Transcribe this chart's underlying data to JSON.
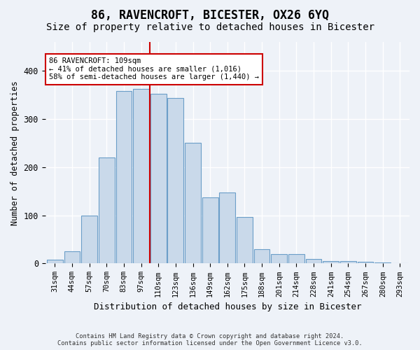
{
  "title": "86, RAVENCROFT, BICESTER, OX26 6YQ",
  "subtitle": "Size of property relative to detached houses in Bicester",
  "xlabel": "Distribution of detached houses by size in Bicester",
  "ylabel": "Number of detached properties",
  "categories": [
    "31sqm",
    "44sqm",
    "57sqm",
    "70sqm",
    "83sqm",
    "97sqm",
    "110sqm",
    "123sqm",
    "136sqm",
    "149sqm",
    "162sqm",
    "175sqm",
    "188sqm",
    "201sqm",
    "214sqm",
    "228sqm",
    "241sqm",
    "254sqm",
    "267sqm",
    "280sqm",
    "293sqm"
  ],
  "bar_heights": [
    8,
    25,
    100,
    220,
    358,
    362,
    353,
    343,
    250,
    137,
    148,
    97,
    30,
    20,
    20,
    10,
    5,
    5,
    4,
    2,
    1
  ],
  "bar_color_fill": "#c9d9ea",
  "bar_color_edge": "#6b9ec8",
  "property_label": "86 RAVENCROFT: 109sqm",
  "annotation_line1": "← 41% of detached houses are smaller (1,016)",
  "annotation_line2": "58% of semi-detached houses are larger (1,440) →",
  "vline_color": "#cc0000",
  "vline_pos": 5.5,
  "background_color": "#eef2f8",
  "grid_color": "#ffffff",
  "footer1": "Contains HM Land Registry data © Crown copyright and database right 2024.",
  "footer2": "Contains public sector information licensed under the Open Government Licence v3.0.",
  "ylim": [
    0,
    460
  ],
  "title_fontsize": 12,
  "subtitle_fontsize": 10
}
